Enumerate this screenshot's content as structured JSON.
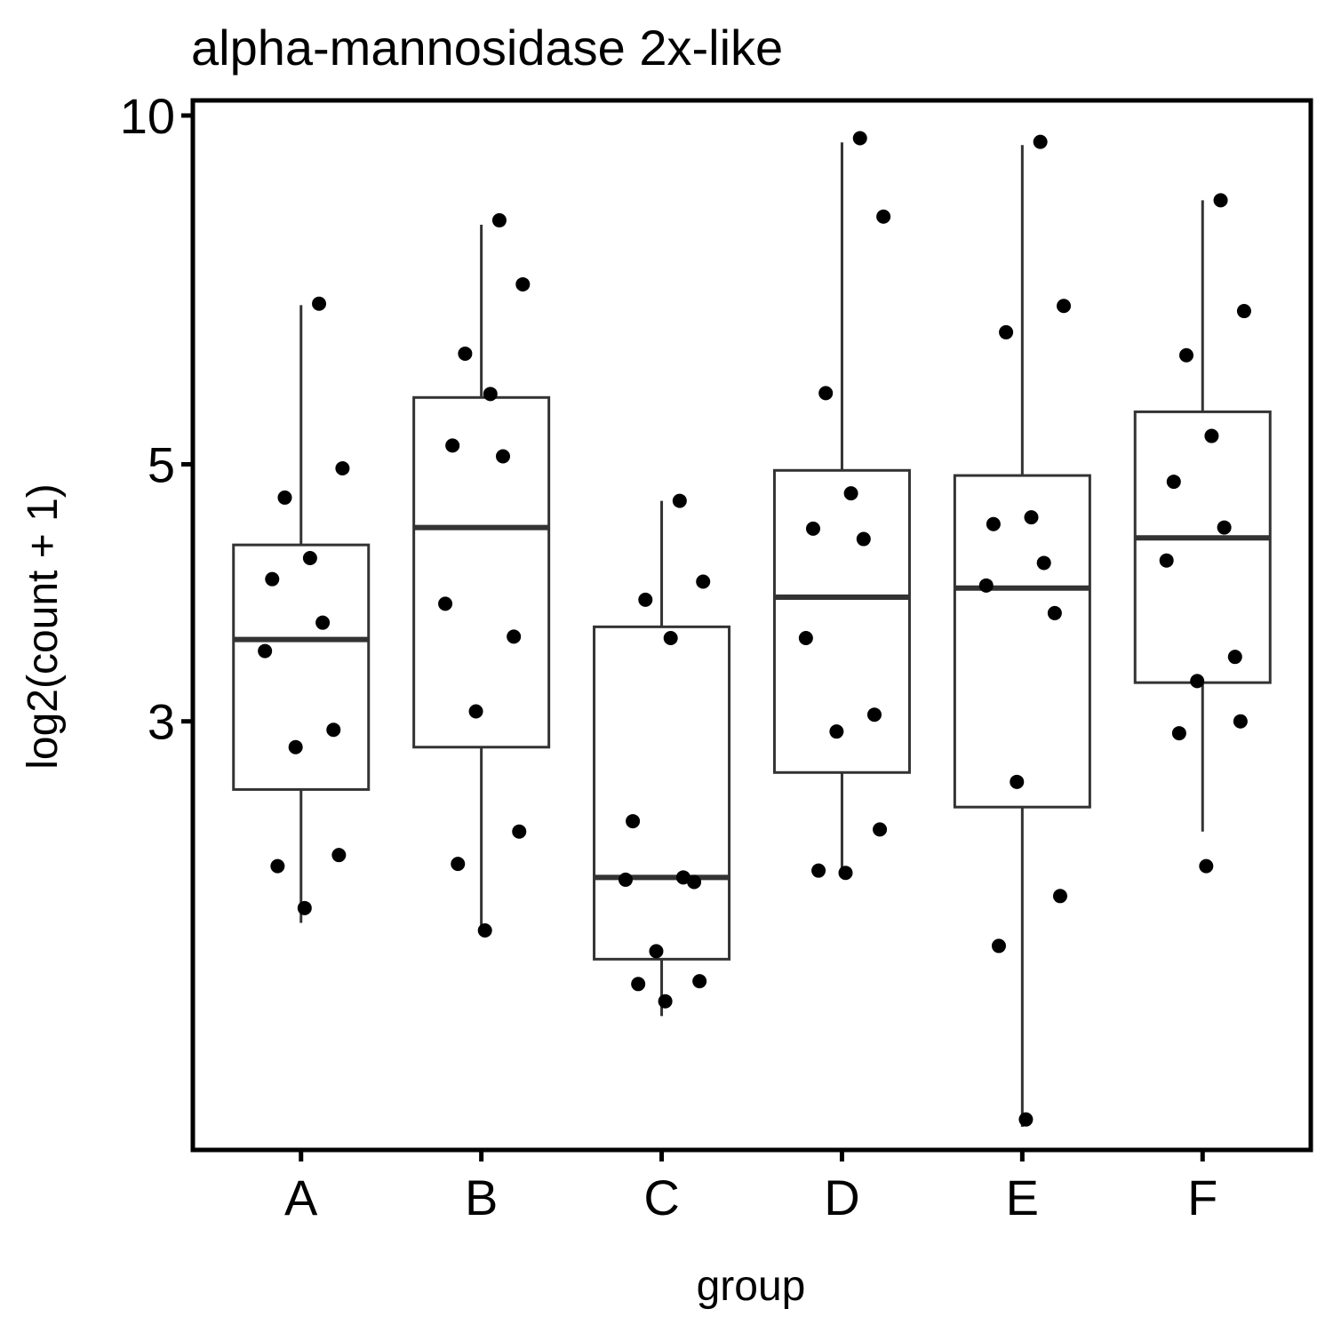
{
  "chart_data": {
    "type": "box",
    "title": "alpha-mannosidase 2x-like",
    "xlabel": "group",
    "ylabel": "log2(count + 1)",
    "y_scale": "log",
    "ylim": [
      1.28,
      10
    ],
    "yticks": [
      3,
      5,
      10
    ],
    "ytick_labels": [
      "3",
      "5",
      "10"
    ],
    "categories": [
      "A",
      "B",
      "C",
      "D",
      "E",
      "F"
    ],
    "boxes": [
      {
        "group": "A",
        "whisker_low": 2.01,
        "q1": 2.62,
        "median": 3.53,
        "q3": 4.26,
        "whisker_high": 6.86
      },
      {
        "group": "B",
        "whisker_low": 1.97,
        "q1": 2.85,
        "median": 4.41,
        "q3": 5.71,
        "whisker_high": 8.05
      },
      {
        "group": "C",
        "whisker_low": 1.67,
        "q1": 1.87,
        "median": 2.2,
        "q3": 3.62,
        "whisker_high": 4.65
      },
      {
        "group": "D",
        "whisker_low": 2.23,
        "q1": 2.71,
        "median": 3.84,
        "q3": 4.94,
        "whisker_high": 9.48
      },
      {
        "group": "E",
        "whisker_low": 1.34,
        "q1": 2.53,
        "median": 3.91,
        "q3": 4.89,
        "whisker_high": 9.43
      },
      {
        "group": "F",
        "whisker_low": 2.41,
        "q1": 3.24,
        "median": 4.32,
        "q3": 5.55,
        "whisker_high": 8.45
      }
    ],
    "points": [
      {
        "group": "A",
        "values": [
          6.88,
          4.96,
          4.68,
          4.15,
          3.98,
          3.65,
          3.45,
          2.95,
          2.85,
          2.3,
          2.25,
          2.07
        ]
      },
      {
        "group": "B",
        "values": [
          8.12,
          7.15,
          6.23,
          5.75,
          5.19,
          5.08,
          3.79,
          3.55,
          3.06,
          2.41,
          2.26,
          1.98
        ]
      },
      {
        "group": "C",
        "values": [
          4.65,
          3.96,
          3.82,
          3.54,
          2.46,
          2.2,
          2.19,
          2.18,
          1.9,
          1.79,
          1.78,
          1.72
        ]
      },
      {
        "group": "D",
        "values": [
          9.56,
          8.18,
          5.76,
          4.72,
          4.4,
          4.31,
          3.54,
          3.04,
          2.94,
          2.42,
          2.23,
          2.22
        ]
      },
      {
        "group": "E",
        "values": [
          9.49,
          6.85,
          6.5,
          4.5,
          4.44,
          4.11,
          3.93,
          3.72,
          2.66,
          2.12,
          1.92,
          1.36
        ]
      },
      {
        "group": "F",
        "values": [
          8.45,
          6.78,
          6.21,
          5.29,
          4.83,
          4.41,
          4.13,
          3.41,
          3.25,
          3.0,
          2.93,
          2.25
        ]
      }
    ],
    "colors": {
      "box_stroke": "#333333",
      "point": "#000000",
      "frame": "#000000",
      "background": "#ffffff"
    },
    "grid": false,
    "legend": "none"
  }
}
